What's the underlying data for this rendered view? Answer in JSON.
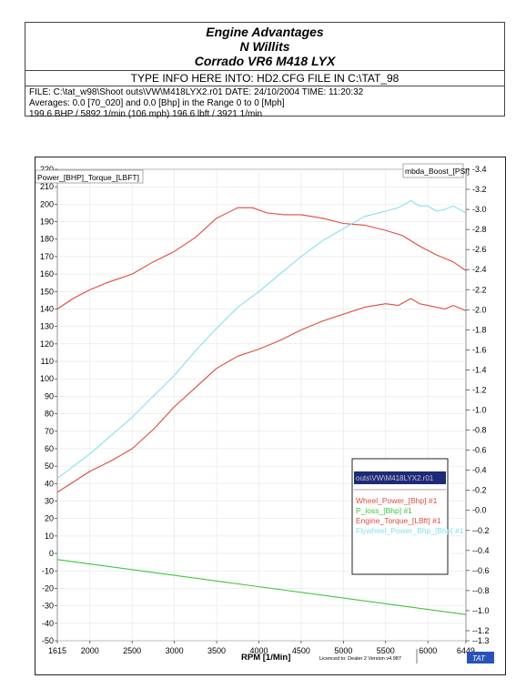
{
  "header": {
    "title1": "Engine Advantages",
    "title2": "N Willits",
    "title3": "Corrado VR6 M418 LYX",
    "type_info": "TYPE INFO HERE INTO: HD2.CFG FILE IN C:\\TAT_98",
    "file_line": "FILE: C:\\tat_w98\\Shoot outs\\VW\\M418LYX2.r01  DATE: 24/10/2004  TIME: 11:20:32",
    "averages_line": "Averages:  0.0 [70_020]  and  0.0 [Bhp]  in the Range  0  to  0  [Mph]",
    "peak_line": "199.6 BHP / 5892 1/min (106 mph)    196.6 lbft / 3921 1/min"
  },
  "footer": {
    "licence": "Licenced to: Dealer 2   Version v4.987",
    "badge": "TAT"
  },
  "colors": {
    "red": "#e0493e",
    "cyan": "#86e0ee",
    "green": "#3ec43e",
    "legend_bar": "#1c2a78"
  },
  "chart_data": {
    "type": "line",
    "left_axis_title": "Power_[BHP]_Torque_[LBFT]",
    "right_axis_title": "mbda_Boost_[PSI]",
    "xlabel": "RPM  [1/Min]",
    "x_range": [
      1615,
      6449
    ],
    "xlim": [
      1615,
      6450
    ],
    "x_ticks": [
      "1615",
      "2000",
      "2500",
      "3000",
      "3500",
      "4000",
      "4500",
      "5000",
      "5500",
      "6000",
      "6449"
    ],
    "ylim_left": [
      -50,
      220
    ],
    "y_ticks_left": [
      "220",
      "210",
      "200",
      "190",
      "180",
      "170",
      "160",
      "150",
      "140",
      "130",
      "120",
      "110",
      "100",
      "90",
      "80",
      "70",
      "60",
      "50",
      "40",
      "30",
      "20",
      "10",
      "0",
      "-10",
      "-20",
      "-30",
      "-40",
      "-50"
    ],
    "ylim_right": [
      -1.3,
      3.4
    ],
    "y_ticks_right": [
      "3.4",
      "3.2",
      "3.0",
      "2.8",
      "2.6",
      "2.4",
      "2.2",
      "2.0",
      "1.8",
      "1.6",
      "1.4",
      "1.2",
      "1.0",
      "0.8",
      "0.6",
      "0.4",
      "0.2",
      "0.0",
      "-0.2",
      "-0.4",
      "-0.6",
      "-0.8",
      "-1.0",
      "-1.2",
      "-1.3"
    ],
    "legend_title": "outs\\VW\\M418LYX2.r01",
    "series": [
      {
        "name": "Wheel_Power_[Bhp] #1",
        "color": "#e0493e",
        "x": [
          1615,
          2000,
          2250,
          2500,
          2750,
          3000,
          3250,
          3500,
          3750,
          4000,
          4250,
          4500,
          4750,
          5000,
          5250,
          5500,
          5650,
          5800,
          5900,
          6000,
          6200,
          6300,
          6449
        ],
        "y": [
          35,
          47,
          53,
          60,
          71,
          84,
          95,
          106,
          113,
          117,
          122,
          128,
          133,
          137,
          141,
          143,
          142,
          146,
          143,
          142,
          140,
          142,
          139
        ]
      },
      {
        "name": "P_loss_[Bhp] #1",
        "color": "#3ec43e",
        "x": [
          1615,
          6449
        ],
        "y": [
          -3.5,
          -35
        ]
      },
      {
        "name": "Engine_Torque_[LBft] #1",
        "color": "#e0493e",
        "x": [
          1615,
          1800,
          2000,
          2200,
          2500,
          2750,
          3000,
          3250,
          3500,
          3750,
          3920,
          4100,
          4300,
          4500,
          4750,
          5000,
          5250,
          5500,
          5700,
          5900,
          6100,
          6300,
          6449
        ],
        "y": [
          140,
          146,
          151,
          155,
          160,
          167,
          173,
          181,
          192,
          198,
          198,
          195,
          194,
          194,
          192,
          189,
          188,
          185,
          182,
          176,
          171,
          167,
          162
        ]
      },
      {
        "name": "Flywheel_Power_Bhp_[Bhp] #1",
        "color": "#86e0ee",
        "x": [
          1615,
          2000,
          2500,
          3000,
          3250,
          3500,
          3750,
          4000,
          4250,
          4500,
          4750,
          5000,
          5250,
          5500,
          5650,
          5800,
          5900,
          6000,
          6100,
          6200,
          6300,
          6449
        ],
        "y": [
          43,
          57,
          78,
          102,
          116,
          129,
          141,
          150,
          160,
          170,
          179,
          186,
          193,
          196,
          198,
          202,
          199,
          199,
          196,
          197,
          199,
          195
        ]
      }
    ]
  }
}
